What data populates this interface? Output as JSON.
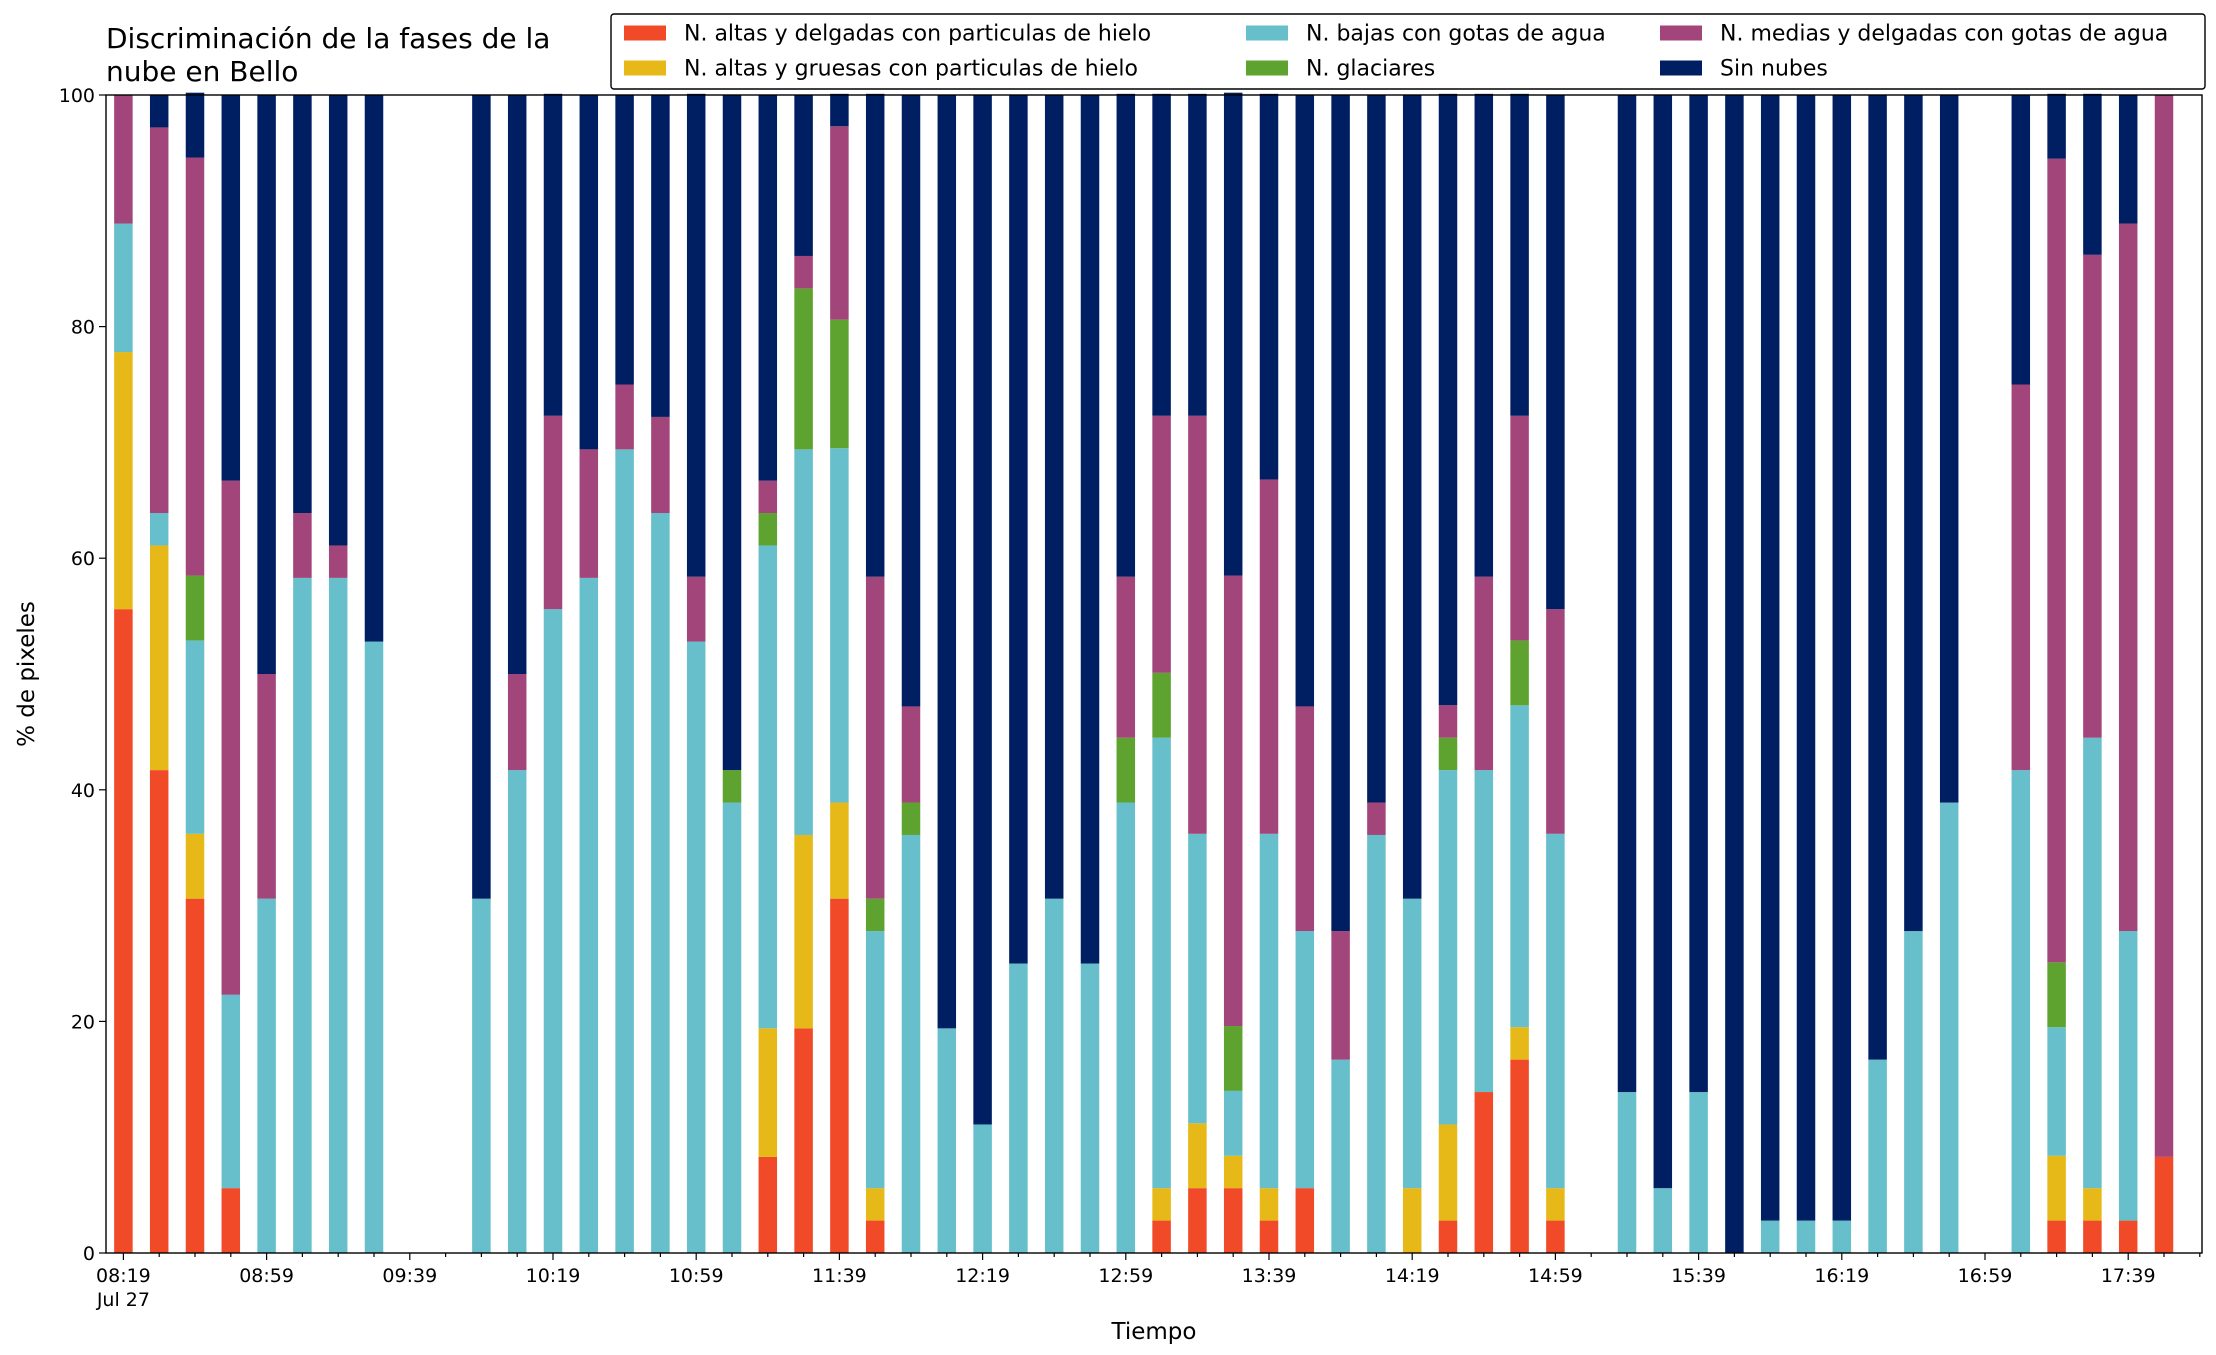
{
  "chart_data": {
    "type": "stacked_bar",
    "title": "Discriminación de la fases de la nube en Bello",
    "xlabel": "Tiempo",
    "ylabel": "% de pixeles",
    "x_sublabel": "Jul 27",
    "categories": [
      "08:19",
      null,
      null,
      null,
      "08:59",
      null,
      null,
      null,
      "09:39",
      null,
      null,
      null,
      "10:19",
      null,
      null,
      null,
      "10:59",
      null,
      null,
      null,
      "11:39",
      null,
      null,
      null,
      "12:19",
      null,
      null,
      null,
      "12:59",
      null,
      null,
      null,
      "13:39",
      null,
      null,
      null,
      "14:19",
      null,
      null,
      null,
      "14:59",
      null,
      null,
      null,
      "15:39",
      null,
      null,
      null,
      "16:19",
      null,
      null,
      null,
      "16:59",
      null,
      null,
      null,
      "17:39",
      null
    ],
    "ylim": [
      0,
      100
    ],
    "yticks": [
      0,
      20,
      40,
      60,
      80,
      100
    ],
    "legend": "top-right",
    "series": [
      {
        "name": "N. altas y delgadas con particulas de hielo",
        "color": "#f04a28",
        "values": [
          55.6,
          41.7,
          30.6,
          5.6,
          0,
          0,
          0,
          0,
          null,
          null,
          0,
          0,
          0,
          0,
          0,
          0,
          0,
          0,
          8.3,
          19.4,
          30.6,
          2.8,
          0,
          0,
          0,
          0,
          0,
          0,
          0,
          2.8,
          5.6,
          5.6,
          2.8,
          5.6,
          0,
          0,
          0,
          2.8,
          13.9,
          16.7,
          2.8,
          null,
          0,
          0,
          0,
          0,
          0,
          0,
          0,
          0,
          0,
          0,
          null,
          0,
          2.8,
          2.8,
          2.8,
          8.3
        ]
      },
      {
        "name": "N. altas y gruesas con particulas de hielo",
        "color": "#e6b818",
        "values": [
          22.2,
          19.4,
          5.6,
          0,
          0,
          0,
          0,
          0,
          null,
          null,
          0,
          0,
          0,
          0,
          0,
          0,
          0,
          0,
          11.1,
          16.7,
          8.3,
          2.8,
          0,
          0,
          0,
          0,
          0,
          0,
          0,
          2.8,
          5.6,
          2.8,
          2.8,
          0,
          0,
          0,
          5.6,
          8.3,
          0,
          2.8,
          2.8,
          null,
          0,
          0,
          0,
          0,
          0,
          0,
          0,
          0,
          0,
          0,
          null,
          0,
          5.6,
          2.8,
          0,
          0
        ]
      },
      {
        "name": "N. bajas con gotas de agua",
        "color": "#66bfca",
        "values": [
          11.1,
          2.8,
          16.7,
          16.7,
          30.6,
          58.3,
          58.3,
          52.8,
          null,
          null,
          30.6,
          41.7,
          55.6,
          58.3,
          69.4,
          63.9,
          52.8,
          38.9,
          41.7,
          33.3,
          30.6,
          22.2,
          36.1,
          19.4,
          11.1,
          25,
          30.6,
          25,
          38.9,
          38.9,
          25,
          5.6,
          30.6,
          22.2,
          16.7,
          36.1,
          25,
          30.6,
          27.8,
          27.8,
          30.6,
          null,
          13.9,
          5.6,
          13.9,
          0,
          2.8,
          2.8,
          2.8,
          16.7,
          27.8,
          38.9,
          null,
          41.7,
          11.1,
          38.9,
          25,
          0
        ]
      },
      {
        "name": "N. glaciares",
        "color": "#5ea22f",
        "values": [
          0,
          0,
          5.6,
          0,
          0,
          0,
          0,
          0,
          null,
          null,
          0,
          0,
          0,
          0,
          0,
          0,
          0,
          2.8,
          2.8,
          13.9,
          11.1,
          2.8,
          2.8,
          0,
          0,
          0,
          0,
          0,
          5.6,
          5.6,
          0,
          5.6,
          0,
          0,
          0,
          0,
          0,
          2.8,
          0,
          5.6,
          0,
          null,
          0,
          0,
          0,
          0,
          0,
          0,
          0,
          0,
          0,
          0,
          null,
          0,
          5.6,
          0,
          0,
          0
        ]
      },
      {
        "name": "N. medias y delgadas con gotas de agua",
        "color": "#a2457a",
        "values": [
          11.1,
          33.3,
          36.1,
          44.4,
          19.4,
          5.6,
          2.8,
          0,
          null,
          null,
          0,
          8.3,
          16.7,
          11.1,
          5.6,
          8.3,
          5.6,
          0,
          2.8,
          2.8,
          16.7,
          27.8,
          8.3,
          0,
          0,
          0,
          0,
          0,
          13.9,
          22.2,
          36.1,
          38.9,
          30.6,
          19.4,
          11.1,
          2.8,
          0,
          2.8,
          16.7,
          19.4,
          19.4,
          null,
          0,
          0,
          0,
          0,
          0,
          0,
          0,
          0,
          0,
          0,
          null,
          33.3,
          69.4,
          41.7,
          61.1,
          91.7
        ]
      },
      {
        "name": "Sin nubes",
        "color": "#001e62",
        "values": [
          0,
          2.8,
          5.6,
          33.3,
          50,
          36.1,
          38.9,
          47.2,
          null,
          null,
          69.4,
          50,
          27.8,
          30.6,
          25,
          27.8,
          41.7,
          58.3,
          33.3,
          13.9,
          2.8,
          41.7,
          52.8,
          80.6,
          88.9,
          75,
          69.4,
          75,
          41.7,
          27.8,
          27.8,
          41.7,
          33.3,
          52.8,
          72.2,
          61.1,
          69.4,
          52.8,
          41.7,
          27.8,
          44.4,
          null,
          86.1,
          94.4,
          86.1,
          100,
          97.2,
          97.2,
          97.2,
          83.3,
          72.2,
          61.1,
          null,
          25,
          5.6,
          13.9,
          11.1,
          0
        ]
      }
    ]
  }
}
